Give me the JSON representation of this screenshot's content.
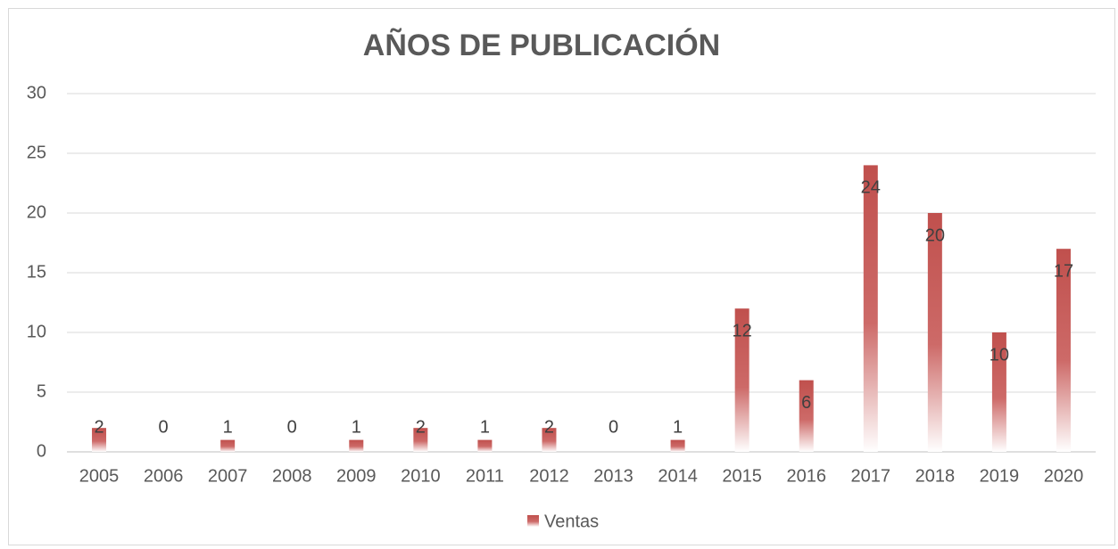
{
  "chart_data": {
    "type": "bar",
    "title": "AÑOS DE PUBLICACIÓN",
    "categories": [
      "2005",
      "2006",
      "2007",
      "2008",
      "2009",
      "2010",
      "2011",
      "2012",
      "2013",
      "2014",
      "2015",
      "2016",
      "2017",
      "2018",
      "2019",
      "2020"
    ],
    "series": [
      {
        "name": "Ventas",
        "color": "#c0504d",
        "values": [
          2,
          0,
          1,
          0,
          1,
          2,
          1,
          2,
          0,
          1,
          12,
          6,
          24,
          20,
          10,
          17
        ]
      }
    ],
    "ylim": [
      0,
      30
    ],
    "yticks": [
      0,
      5,
      10,
      15,
      20,
      25,
      30
    ],
    "grid": true,
    "legend": "bottom"
  }
}
